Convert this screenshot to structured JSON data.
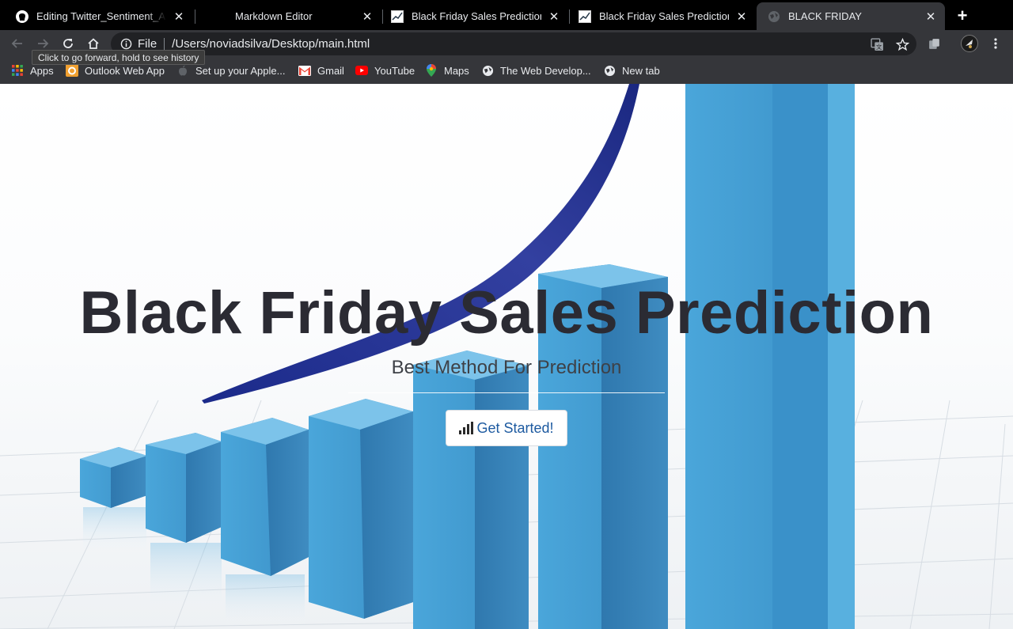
{
  "tabs": [
    {
      "title": "Editing Twitter_Sentiment_Ana",
      "icon": "github-icon"
    },
    {
      "title": "Markdown Editor",
      "icon": "none"
    },
    {
      "title": "Black Friday Sales Prediction",
      "icon": "chart-doc-icon"
    },
    {
      "title": "Black Friday Sales Prediction",
      "icon": "chart-doc-icon"
    },
    {
      "title": "BLACK FRIDAY",
      "icon": "globe-icon",
      "active": true
    }
  ],
  "toolbar": {
    "scheme": "File",
    "url": "/Users/noviadsilva/Desktop/main.html",
    "tooltip": "Click to go forward, hold to see history"
  },
  "bookmarks": [
    {
      "label": "Apps",
      "icon": "apps-grid-icon"
    },
    {
      "label": "Outlook Web App",
      "icon": "outlook-icon"
    },
    {
      "label": "Set up your Apple...",
      "icon": "apple-icon"
    },
    {
      "label": "Gmail",
      "icon": "gmail-icon"
    },
    {
      "label": "YouTube",
      "icon": "youtube-icon"
    },
    {
      "label": "Maps",
      "icon": "maps-icon"
    },
    {
      "label": "The Web Develop...",
      "icon": "globe-icon"
    },
    {
      "label": "New tab",
      "icon": "globe-icon"
    }
  ],
  "hero": {
    "title": "Black Friday Sales Prediction",
    "subtitle": "Best Method For Prediction",
    "cta_label": "Get Started!",
    "cta_icon": "signal-bars-icon"
  },
  "colors": {
    "tab_strip": "#000000",
    "toolbar": "#35363a",
    "omnibox": "#202124",
    "bar_blue": "#3f9bd1",
    "curve_navy": "#23308a",
    "cta_text": "#1d5aa0"
  }
}
